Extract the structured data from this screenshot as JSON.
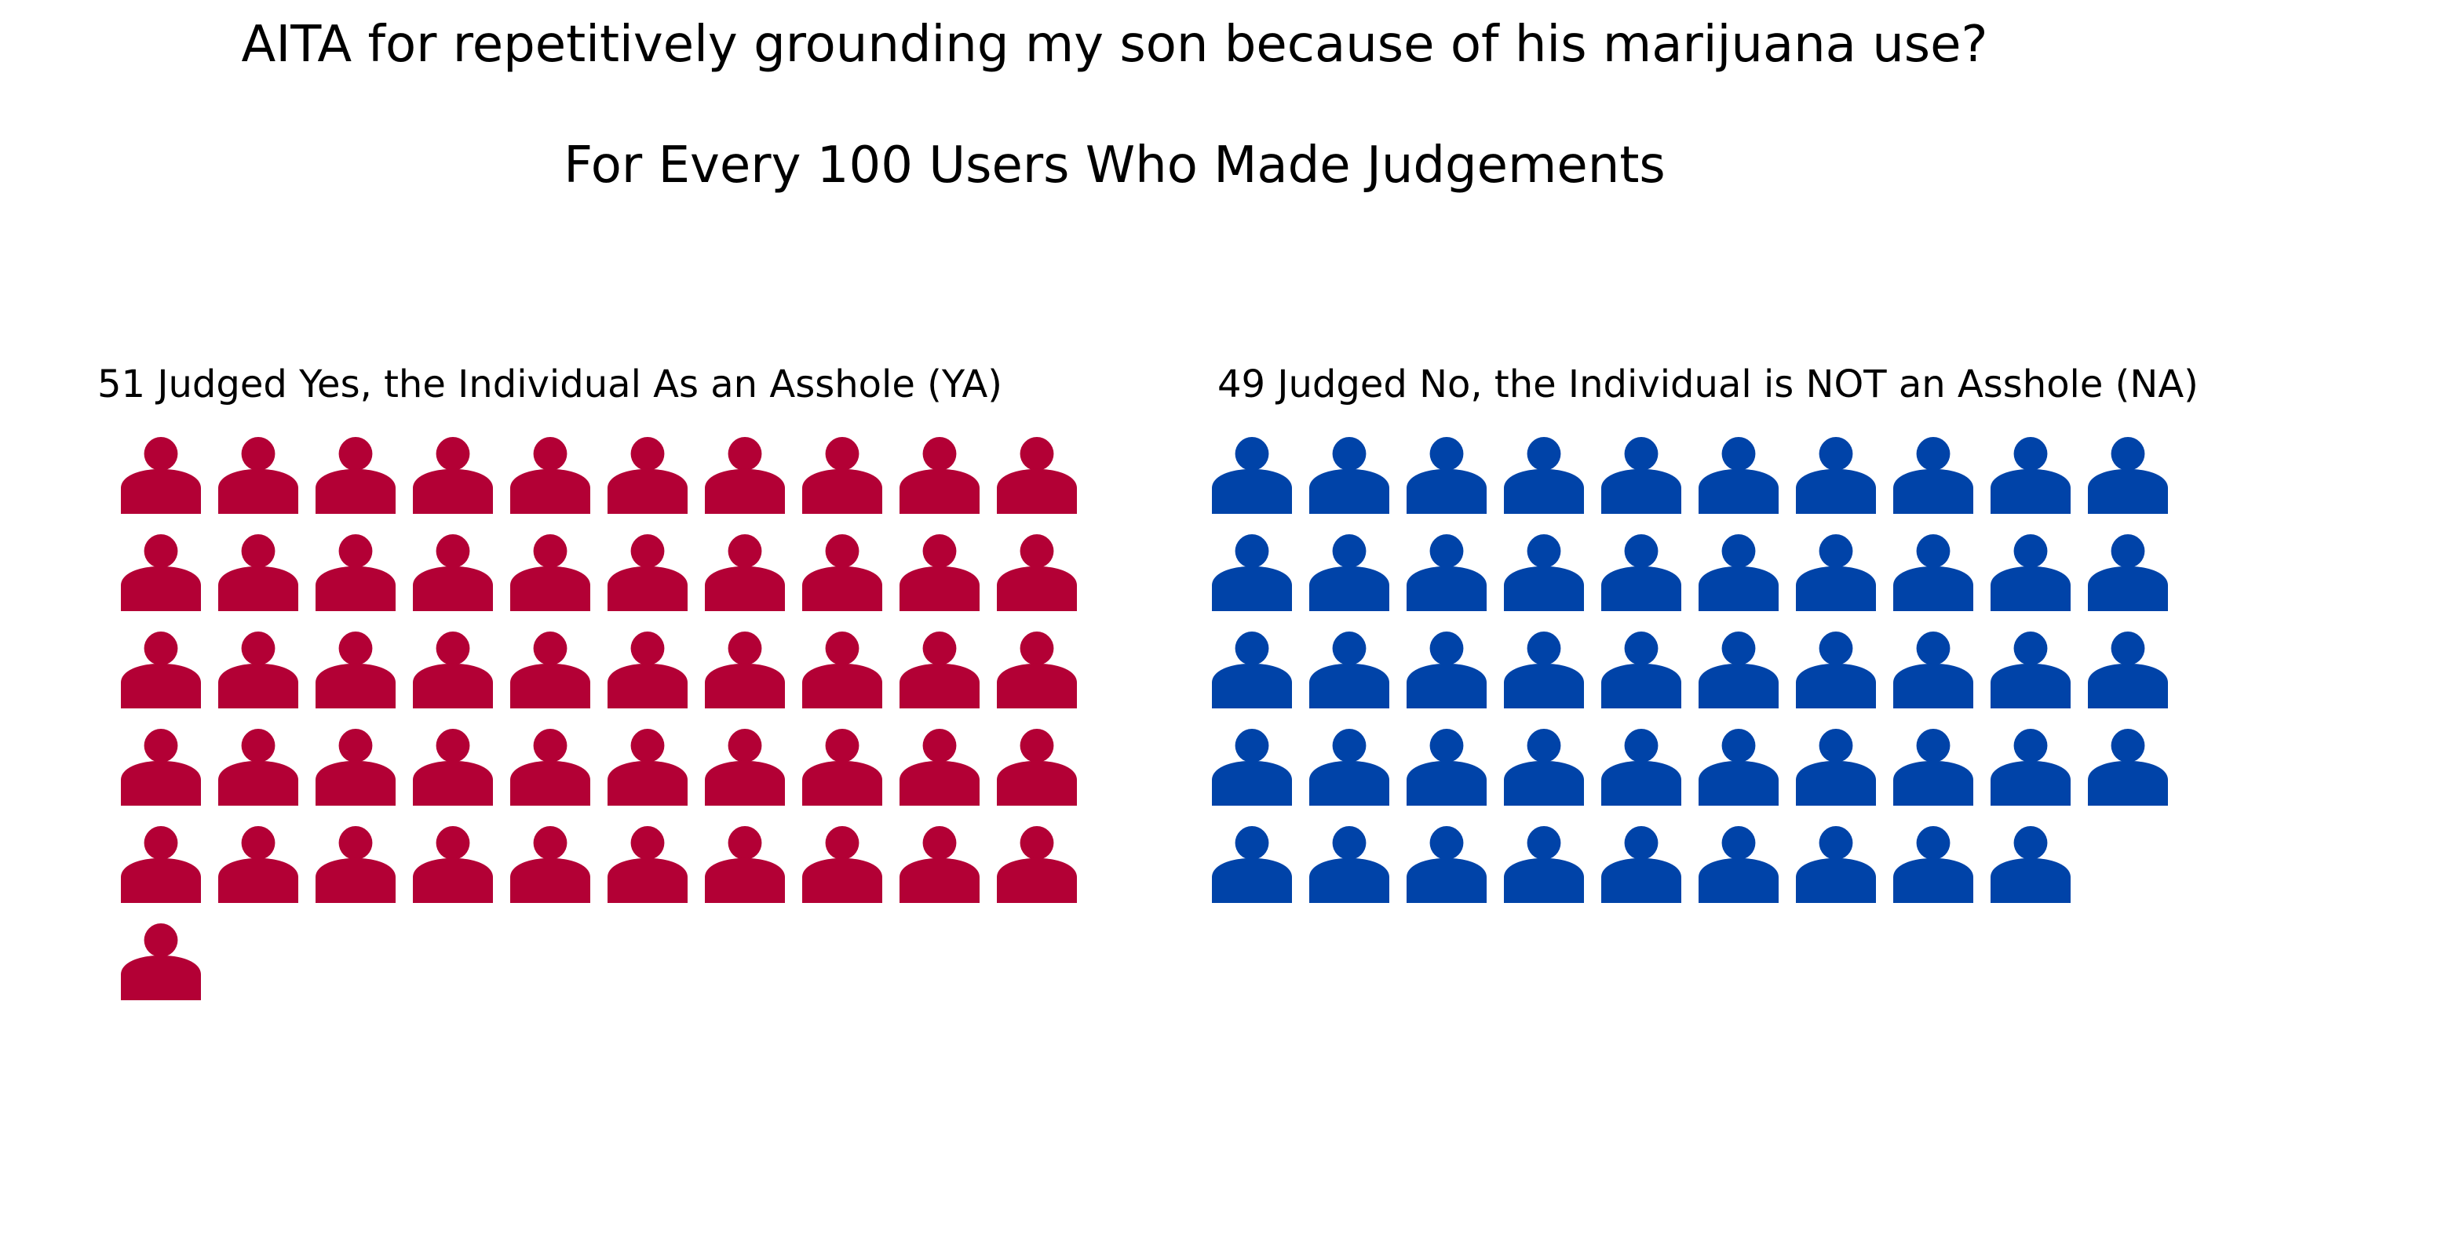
{
  "chart_data": {
    "type": "pictogram",
    "title": "AITA for repetitively grounding my son because of his marijuana use?",
    "subtitle": "For Every 100 Users Who Made Judgements",
    "icon": "person-icon",
    "icons_per_row": 10,
    "groups": [
      {
        "label": "51 Judged Yes, the Individual As an Asshole (YA)",
        "count": 51,
        "color": "#b30035"
      },
      {
        "label": "49 Judged No, the Individual is NOT an Asshole (NA)",
        "count": 49,
        "color": "#0043a8"
      }
    ]
  }
}
